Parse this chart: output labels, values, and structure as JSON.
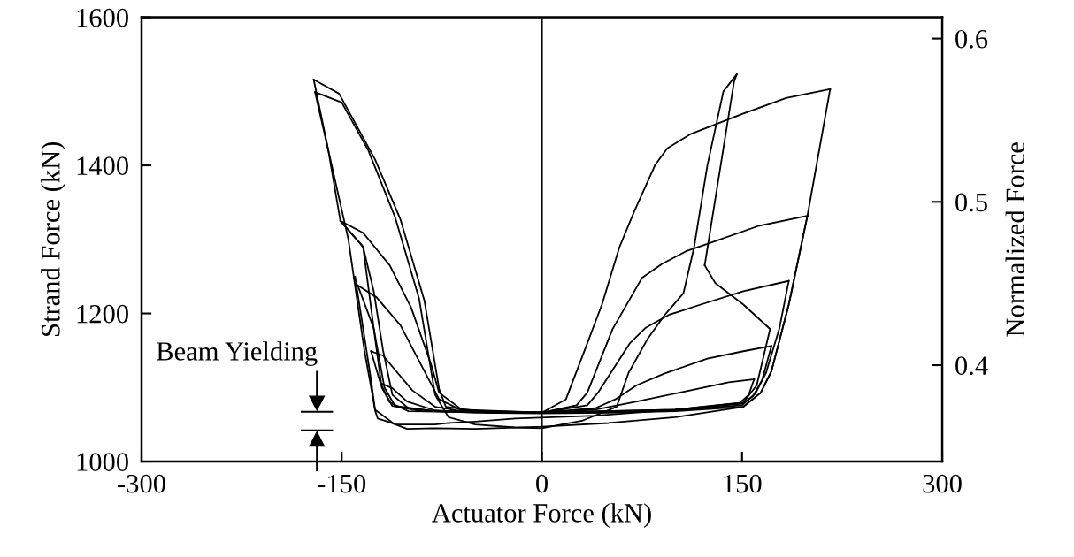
{
  "chart_data": {
    "type": "line",
    "xlabel": "Actuator Force (kN)",
    "ylabel": "Strand Force (kN)",
    "y2label": "Normalized Force",
    "xlim": [
      -300,
      300
    ],
    "xticks": [
      -300,
      -150,
      0,
      150,
      300
    ],
    "ylim": [
      1000,
      1600
    ],
    "yticks": [
      1000,
      1200,
      1400,
      1600
    ],
    "y2lim": [
      0.341,
      0.613
    ],
    "y2ticks": [
      0.4,
      0.5,
      0.6
    ],
    "legend": false,
    "grid": false,
    "marker": "none",
    "line_style": "solid",
    "annotations": [
      "Beam Yielding"
    ],
    "ref_lines": [
      {
        "axis": "x",
        "value": 0,
        "label": null,
        "color": "#000000"
      }
    ],
    "series": [
      {
        "color": "#000000",
        "x": [
          -151,
          -134,
          -114,
          -98,
          -83,
          -77,
          -60,
          0,
          26,
          34,
          53,
          75,
          90,
          108,
          124,
          162,
          199
        ],
        "values": [
          1325,
          1309,
          1265,
          1208,
          1131,
          1093,
          1070,
          1066,
          1076,
          1093,
          1179,
          1248,
          1267,
          1284,
          1294,
          1318,
          1332
        ]
      },
      {
        "color": "#000000",
        "x": [
          199,
          185,
          172,
          164,
          151,
          100,
          50,
          0,
          -50,
          -80,
          -100,
          -112,
          -119,
          -126,
          -134,
          -151,
          -160,
          -170
        ],
        "values": [
          1332,
          1212,
          1122,
          1093,
          1074,
          1068,
          1066,
          1065,
          1066,
          1068,
          1072,
          1090,
          1150,
          1230,
          1290,
          1325,
          1420,
          1499
        ]
      },
      {
        "color": "#000000",
        "x": [
          -138,
          -124,
          -106,
          -88,
          -77,
          -60,
          0,
          34,
          42,
          66,
          78,
          95,
          119,
          151,
          185
        ],
        "values": [
          1238,
          1222,
          1184,
          1122,
          1084,
          1069,
          1066,
          1076,
          1093,
          1160,
          1181,
          1198,
          1212,
          1230,
          1244
        ]
      },
      {
        "color": "#000000",
        "x": [
          185,
          178,
          168,
          160,
          150,
          100,
          0,
          -80,
          -110,
          -118,
          -126,
          -134,
          -151
        ],
        "values": [
          1244,
          1180,
          1120,
          1092,
          1076,
          1069,
          1066,
          1068,
          1075,
          1100,
          1180,
          1290,
          1325
        ]
      },
      {
        "color": "#000000",
        "x": [
          -128,
          -119,
          -97,
          -80,
          -60,
          0,
          40,
          55,
          71,
          92,
          124,
          151,
          172
        ],
        "values": [
          1149,
          1143,
          1096,
          1074,
          1068,
          1066,
          1072,
          1084,
          1103,
          1119,
          1139,
          1149,
          1156
        ]
      },
      {
        "color": "#000000",
        "x": [
          172,
          165,
          158,
          150,
          100,
          0,
          -90,
          -112,
          -120,
          -126,
          -138
        ],
        "values": [
          1156,
          1110,
          1088,
          1078,
          1070,
          1066,
          1068,
          1075,
          1100,
          1180,
          1238
        ]
      },
      {
        "color": "#000000",
        "x": [
          -121,
          -112,
          -101,
          -80,
          -60,
          0,
          40,
          71,
          103,
          140,
          159
        ],
        "values": [
          1106,
          1099,
          1081,
          1069,
          1067,
          1066,
          1070,
          1081,
          1093,
          1107,
          1111
        ]
      },
      {
        "color": "#000000",
        "x": [
          159,
          155,
          148,
          100,
          0,
          -100,
          -114,
          -121,
          -128
        ],
        "values": [
          1111,
          1090,
          1079,
          1070,
          1066,
          1068,
          1080,
          1106,
          1149
        ]
      },
      {
        "color": "#000000",
        "x": [
          -170,
          -150,
          -130,
          -110,
          -92,
          -80,
          -70,
          -50,
          -20,
          0,
          30,
          56,
          65,
          79,
          92,
          106,
          114,
          124,
          136,
          146
        ],
        "values": [
          1499,
          1485,
          1420,
          1330,
          1220,
          1090,
          1060,
          1050,
          1046,
          1045,
          1055,
          1074,
          1120,
          1165,
          1198,
          1227,
          1289,
          1400,
          1500,
          1523
        ]
      },
      {
        "color": "#000000",
        "x": [
          146,
          144,
          122
        ],
        "values": [
          1523,
          1513,
          1265
        ]
      },
      {
        "color": "#000000",
        "x": [
          122,
          130,
          151,
          171
        ],
        "values": [
          1265,
          1241,
          1212,
          1179
        ]
      },
      {
        "color": "#000000",
        "x": [
          171,
          161,
          151,
          100,
          40,
          -20,
          -50,
          -70,
          -80,
          -110,
          -125,
          -133,
          -145,
          -160,
          -171
        ],
        "values": [
          1179,
          1103,
          1080,
          1070,
          1062,
          1058,
          1054,
          1052,
          1050,
          1050,
          1070,
          1150,
          1300,
          1420,
          1516
        ]
      },
      {
        "color": "#000000",
        "x": [
          -171,
          -152,
          -125,
          -106,
          -88,
          -77,
          -72,
          -40,
          0,
          18,
          32,
          45,
          58,
          69,
          85,
          94,
          111,
          151,
          183,
          216
        ],
        "values": [
          1516,
          1497,
          1408,
          1327,
          1217,
          1098,
          1074,
          1066,
          1066,
          1084,
          1150,
          1212,
          1289,
          1337,
          1401,
          1423,
          1442,
          1470,
          1491,
          1503
        ]
      },
      {
        "color": "#000000",
        "x": [
          216,
          199,
          185,
          172,
          164,
          151,
          100,
          50,
          0,
          -50,
          -80,
          -101,
          -114,
          -123,
          -125,
          -128,
          -140
        ],
        "values": [
          1503,
          1332,
          1212,
          1122,
          1093,
          1074,
          1060,
          1052,
          1047,
          1044,
          1045,
          1044,
          1053,
          1058,
          1069,
          1110,
          1250
        ]
      }
    ]
  }
}
